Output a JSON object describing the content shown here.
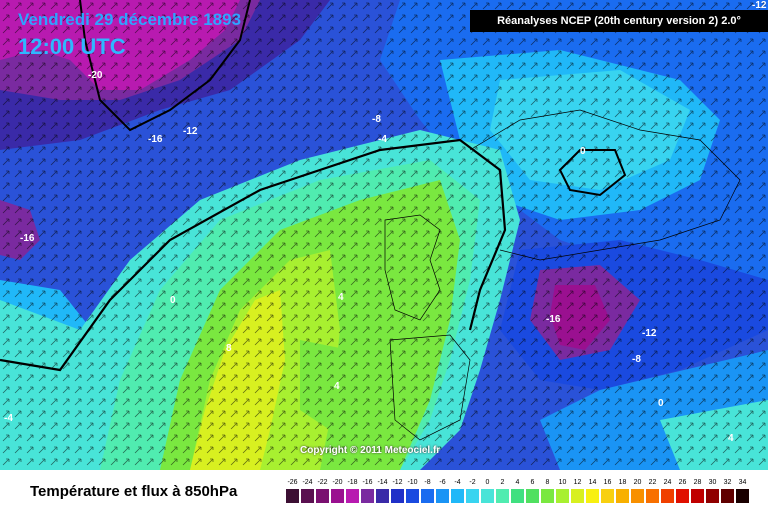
{
  "header": {
    "date": "Vendredi 29 décembre 1893",
    "time": "12:00 UTC",
    "source": "Réanalyses NCEP (20th century version 2) 2.0°"
  },
  "map": {
    "copyright": "Copyright © 2011 Meteociel.fr",
    "contour_labels": [
      "-20",
      "-16",
      "-12",
      "-8",
      "-4",
      "-16",
      "0",
      "0",
      "4",
      "8",
      "4",
      "-4",
      "-16",
      "-12",
      "-8",
      "0",
      "4",
      "-12",
      "0"
    ]
  },
  "legend": {
    "title": "Température et flux à 850hPa",
    "ticks": [
      "-26",
      "-24",
      "-22",
      "-20",
      "-18",
      "-16",
      "-14",
      "-12",
      "-10",
      "-8",
      "-6",
      "-4",
      "-2",
      "0",
      "2",
      "4",
      "6",
      "8",
      "10",
      "12",
      "14",
      "16",
      "18",
      "20",
      "22",
      "24",
      "26",
      "28",
      "30",
      "32",
      "34"
    ],
    "colors": [
      "#3c0f33",
      "#5a1050",
      "#7a1070",
      "#9a1090",
      "#b81ab0",
      "#7a2aa0",
      "#3a2aa8",
      "#2030c8",
      "#1a4ae0",
      "#1a6cf0",
      "#1a94f5",
      "#20b8f8",
      "#38d4f0",
      "#48e4d8",
      "#50ecb0",
      "#40e080",
      "#50e060",
      "#7ae840",
      "#a8f030",
      "#d8f020",
      "#f8f010",
      "#f8d010",
      "#f8b000",
      "#f89000",
      "#f87000",
      "#f04000",
      "#e01000",
      "#c00000",
      "#900000",
      "#600000",
      "#1a0000"
    ]
  }
}
